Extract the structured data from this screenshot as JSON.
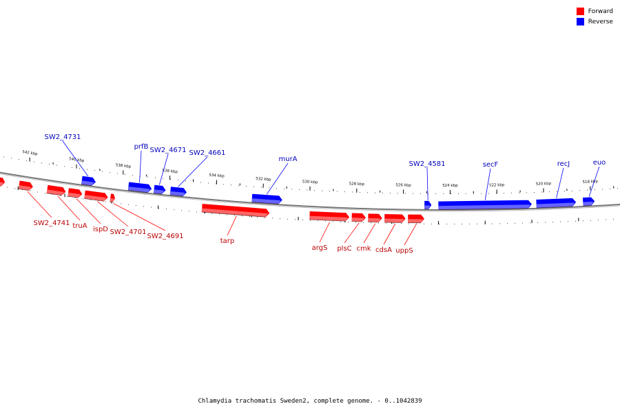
{
  "legend": {
    "forward_label": "Forward",
    "reverse_label": "Reverse",
    "forward_color": "#ff0000",
    "reverse_color": "#0000ff"
  },
  "caption": "Chlamydia trachomatis Sweden2, complete genome. - 0..1042839",
  "colors": {
    "forward": "#ff0000",
    "forward_light": "#ff7777",
    "reverse": "#0000ff",
    "reverse_light": "#7777ff",
    "backbone": "#666666",
    "forward_label": "#bb0000",
    "reverse_label": "#0000bb"
  },
  "axis": {
    "unit": "kbp",
    "direction": "descending",
    "ticks": [
      542,
      540,
      538,
      536,
      534,
      532,
      530,
      528,
      526,
      524,
      522,
      520,
      518
    ],
    "tick_labels": [
      "542 kbp",
      "540 kbp",
      "538 kbp",
      "536 kbp",
      "534 kbp",
      "532 kbp",
      "530 kbp",
      "528 kbp",
      "526 kbp",
      "524 kbp",
      "522 kbp",
      "520 kbp",
      "518 kbp"
    ]
  },
  "genes": {
    "reverse": [
      {
        "name": "SW2_4731",
        "start_kbp": 539.8,
        "end_kbp": 539.2
      },
      {
        "name": "prfB",
        "start_kbp": 537.8,
        "end_kbp": 536.8
      },
      {
        "name": "SW2_4671",
        "start_kbp": 536.7,
        "end_kbp": 536.2
      },
      {
        "name": "SW2_4661",
        "start_kbp": 536.0,
        "end_kbp": 535.3
      },
      {
        "name": "murA",
        "start_kbp": 532.5,
        "end_kbp": 531.2
      },
      {
        "name": "SW2_4581",
        "start_kbp": 525.1,
        "end_kbp": 524.8
      },
      {
        "name": "secF",
        "start_kbp": 524.5,
        "end_kbp": 520.5
      },
      {
        "name": "recJ",
        "start_kbp": 520.3,
        "end_kbp": 518.6
      },
      {
        "name": "euo",
        "start_kbp": 518.3,
        "end_kbp": 517.8
      }
    ],
    "forward": [
      {
        "name": "",
        "start_kbp": 544.2,
        "end_kbp": 543.4
      },
      {
        "name": "",
        "start_kbp": 543.3,
        "end_kbp": 543.0
      },
      {
        "name": "SW2_4741",
        "start_kbp": 542.4,
        "end_kbp": 541.8
      },
      {
        "name": "truA",
        "start_kbp": 541.2,
        "end_kbp": 540.4
      },
      {
        "name": "ispD",
        "start_kbp": 540.3,
        "end_kbp": 539.7
      },
      {
        "name": "SW2_4701",
        "start_kbp": 539.6,
        "end_kbp": 538.6
      },
      {
        "name": "SW2_4691",
        "start_kbp": 538.5,
        "end_kbp": 538.3
      },
      {
        "name": "tarp",
        "start_kbp": 534.6,
        "end_kbp": 531.7
      },
      {
        "name": "argS",
        "start_kbp": 530.0,
        "end_kbp": 528.3
      },
      {
        "name": "plsC",
        "start_kbp": 528.2,
        "end_kbp": 527.6
      },
      {
        "name": "cmk",
        "start_kbp": 527.5,
        "end_kbp": 526.9
      },
      {
        "name": "cdsA",
        "start_kbp": 526.8,
        "end_kbp": 525.9
      },
      {
        "name": "uppS",
        "start_kbp": 525.8,
        "end_kbp": 525.1
      }
    ]
  }
}
